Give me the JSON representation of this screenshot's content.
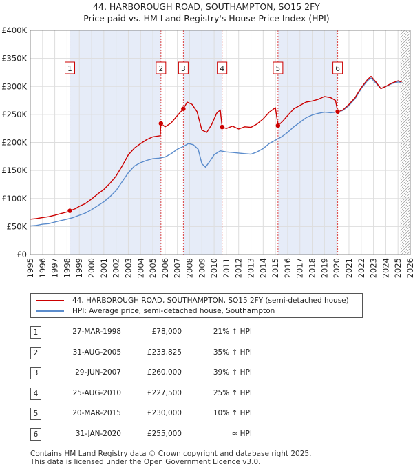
{
  "title": "44, HARBOROUGH ROAD, SOUTHAMPTON, SO15 2FY",
  "subtitle": "Price paid vs. HM Land Registry's House Price Index (HPI)",
  "colors": {
    "property": "#cc0000",
    "hpi": "#5b8ccc",
    "shade": "#e6ecf8",
    "grid": "#dddddd"
  },
  "chart_data": {
    "type": "line",
    "xlim": [
      1995,
      2026
    ],
    "ylim": [
      0,
      400000
    ],
    "yticks": [
      0,
      50000,
      100000,
      150000,
      200000,
      250000,
      300000,
      350000,
      400000
    ],
    "ytick_labels": [
      "£0",
      "£50K",
      "£100K",
      "£150K",
      "£200K",
      "£250K",
      "£300K",
      "£350K",
      "£400K"
    ],
    "xticks": [
      "1995",
      "1996",
      "1997",
      "1998",
      "1999",
      "2000",
      "2001",
      "2002",
      "2003",
      "2004",
      "2005",
      "2006",
      "2007",
      "2008",
      "2009",
      "2010",
      "2011",
      "2012",
      "2013",
      "2014",
      "2015",
      "2016",
      "2017",
      "2018",
      "2019",
      "2020",
      "2021",
      "2022",
      "2023",
      "2024",
      "2025",
      "2026"
    ],
    "shaded_spans": [
      [
        1998.23,
        2005.66
      ],
      [
        2007.49,
        2010.65
      ],
      [
        2015.21,
        2020.08
      ]
    ],
    "future_hatch_from": 2025.2,
    "series": [
      {
        "name": "44, HARBOROUGH ROAD, SOUTHAMPTON, SO15 2FY (semi-detached house)",
        "points": [
          [
            1995,
            63000
          ],
          [
            1995.5,
            64000
          ],
          [
            1996,
            66000
          ],
          [
            1996.5,
            67500
          ],
          [
            1997,
            70000
          ],
          [
            1997.5,
            73000
          ],
          [
            1998,
            76000
          ],
          [
            1998.23,
            78000
          ],
          [
            1998.7,
            82000
          ],
          [
            1999,
            86000
          ],
          [
            1999.5,
            91000
          ],
          [
            2000,
            99000
          ],
          [
            2000.5,
            108000
          ],
          [
            2001,
            116000
          ],
          [
            2001.5,
            127000
          ],
          [
            2002,
            140000
          ],
          [
            2002.5,
            158000
          ],
          [
            2003,
            178000
          ],
          [
            2003.5,
            190000
          ],
          [
            2004,
            198000
          ],
          [
            2004.5,
            205000
          ],
          [
            2005,
            210000
          ],
          [
            2005.6,
            212000
          ],
          [
            2005.66,
            233825
          ],
          [
            2006,
            228000
          ],
          [
            2006.5,
            235000
          ],
          [
            2007,
            248000
          ],
          [
            2007.49,
            260000
          ],
          [
            2007.8,
            272000
          ],
          [
            2008.2,
            268000
          ],
          [
            2008.6,
            255000
          ],
          [
            2009,
            222000
          ],
          [
            2009.4,
            218000
          ],
          [
            2009.8,
            232000
          ],
          [
            2010.2,
            252000
          ],
          [
            2010.5,
            258000
          ],
          [
            2010.65,
            227500
          ],
          [
            2011,
            225000
          ],
          [
            2011.5,
            229000
          ],
          [
            2012,
            224000
          ],
          [
            2012.5,
            228000
          ],
          [
            2013,
            227000
          ],
          [
            2013.5,
            233000
          ],
          [
            2014,
            242000
          ],
          [
            2014.5,
            254000
          ],
          [
            2015,
            262000
          ],
          [
            2015.21,
            230000
          ],
          [
            2015.6,
            238000
          ],
          [
            2016,
            248000
          ],
          [
            2016.5,
            260000
          ],
          [
            2017,
            266000
          ],
          [
            2017.5,
            272000
          ],
          [
            2018,
            274000
          ],
          [
            2018.5,
            277000
          ],
          [
            2019,
            282000
          ],
          [
            2019.5,
            280000
          ],
          [
            2019.9,
            275000
          ],
          [
            2020.08,
            255000
          ],
          [
            2020.5,
            258000
          ],
          [
            2021,
            268000
          ],
          [
            2021.5,
            280000
          ],
          [
            2022,
            298000
          ],
          [
            2022.5,
            312000
          ],
          [
            2022.8,
            318000
          ],
          [
            2023.2,
            308000
          ],
          [
            2023.6,
            296000
          ],
          [
            2024,
            300000
          ],
          [
            2024.5,
            306000
          ],
          [
            2025,
            310000
          ],
          [
            2025.3,
            308000
          ]
        ]
      },
      {
        "name": "HPI: Average price, semi-detached house, Southampton",
        "points": [
          [
            1995,
            51000
          ],
          [
            1995.5,
            52000
          ],
          [
            1996,
            54000
          ],
          [
            1996.5,
            55000
          ],
          [
            1997,
            58000
          ],
          [
            1997.5,
            60500
          ],
          [
            1998,
            63000
          ],
          [
            1998.5,
            66000
          ],
          [
            1999,
            70000
          ],
          [
            1999.5,
            74000
          ],
          [
            2000,
            80000
          ],
          [
            2000.5,
            87000
          ],
          [
            2001,
            94000
          ],
          [
            2001.5,
            103000
          ],
          [
            2002,
            114000
          ],
          [
            2002.5,
            130000
          ],
          [
            2003,
            146000
          ],
          [
            2003.5,
            158000
          ],
          [
            2004,
            164000
          ],
          [
            2004.5,
            168000
          ],
          [
            2005,
            171000
          ],
          [
            2005.5,
            172000
          ],
          [
            2006,
            174000
          ],
          [
            2006.5,
            180000
          ],
          [
            2007,
            188000
          ],
          [
            2007.5,
            193000
          ],
          [
            2007.9,
            198000
          ],
          [
            2008.3,
            196000
          ],
          [
            2008.7,
            188000
          ],
          [
            2009,
            162000
          ],
          [
            2009.3,
            156000
          ],
          [
            2009.7,
            168000
          ],
          [
            2010,
            178000
          ],
          [
            2010.5,
            185000
          ],
          [
            2011,
            183000
          ],
          [
            2011.5,
            182000
          ],
          [
            2012,
            181000
          ],
          [
            2012.5,
            180000
          ],
          [
            2013,
            179000
          ],
          [
            2013.5,
            183000
          ],
          [
            2014,
            189000
          ],
          [
            2014.5,
            198000
          ],
          [
            2015,
            204000
          ],
          [
            2015.5,
            210000
          ],
          [
            2016,
            218000
          ],
          [
            2016.5,
            228000
          ],
          [
            2017,
            236000
          ],
          [
            2017.5,
            244000
          ],
          [
            2018,
            249000
          ],
          [
            2018.5,
            252000
          ],
          [
            2019,
            254000
          ],
          [
            2019.5,
            253000
          ],
          [
            2020,
            254000
          ],
          [
            2020.5,
            257000
          ],
          [
            2021,
            266000
          ],
          [
            2021.5,
            278000
          ],
          [
            2022,
            296000
          ],
          [
            2022.5,
            310000
          ],
          [
            2022.8,
            315000
          ],
          [
            2023.2,
            306000
          ],
          [
            2023.6,
            296000
          ],
          [
            2024,
            300000
          ],
          [
            2024.5,
            305000
          ],
          [
            2025,
            308000
          ],
          [
            2025.3,
            307000
          ]
        ]
      }
    ],
    "sale_points": [
      [
        1998.23,
        78000
      ],
      [
        2005.66,
        233825
      ],
      [
        2007.49,
        260000
      ],
      [
        2010.65,
        227500
      ],
      [
        2015.21,
        230000
      ],
      [
        2020.08,
        255000
      ]
    ]
  },
  "legend": {
    "property": "44, HARBOROUGH ROAD, SOUTHAMPTON, SO15 2FY (semi-detached house)",
    "hpi": "HPI: Average price, semi-detached house, Southampton"
  },
  "sales": [
    {
      "num": "1",
      "date": "27-MAR-1998",
      "price": "£78,000",
      "hpi": "21% ↑ HPI"
    },
    {
      "num": "2",
      "date": "31-AUG-2005",
      "price": "£233,825",
      "hpi": "35% ↑ HPI"
    },
    {
      "num": "3",
      "date": "29-JUN-2007",
      "price": "£260,000",
      "hpi": "39% ↑ HPI"
    },
    {
      "num": "4",
      "date": "25-AUG-2010",
      "price": "£227,500",
      "hpi": "25% ↑ HPI"
    },
    {
      "num": "5",
      "date": "20-MAR-2015",
      "price": "£230,000",
      "hpi": "10% ↑ HPI"
    },
    {
      "num": "6",
      "date": "31-JAN-2020",
      "price": "£255,000",
      "hpi": "≈ HPI"
    }
  ],
  "footer": {
    "line1": "Contains HM Land Registry data © Crown copyright and database right 2025.",
    "line2": "This data is licensed under the Open Government Licence v3.0."
  }
}
